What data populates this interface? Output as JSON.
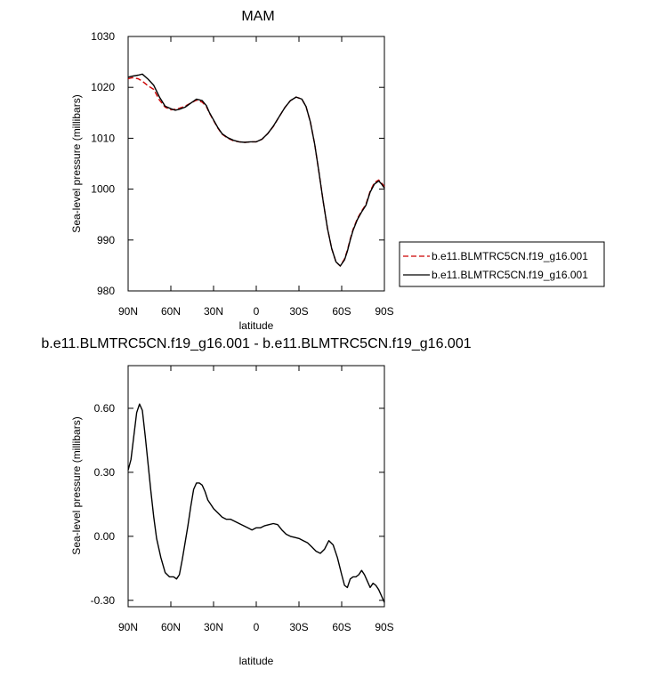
{
  "chart_data": [
    {
      "type": "line",
      "title": "MAM",
      "xlabel": "latitude",
      "ylabel": "Sea-level pressure (millibars)",
      "xlim": [
        90,
        -90
      ],
      "ylim": [
        980,
        1030
      ],
      "xticks": [
        90,
        60,
        30,
        0,
        -30,
        -60,
        -90
      ],
      "xtick_labels": [
        "90N",
        "60N",
        "30N",
        "0",
        "30S",
        "60S",
        "90S"
      ],
      "yticks": [
        980,
        990,
        1000,
        1010,
        1020,
        1030
      ],
      "ytick_labels": [
        "980",
        "990",
        "1000",
        "1010",
        "1020",
        "1030"
      ],
      "legend": "right",
      "series": [
        {
          "name": "b.e11.BLMTRC5CN.f19_g16.001",
          "color": "#cc0000",
          "style": "dashed",
          "x": [
            90,
            87,
            83,
            80,
            76,
            72,
            68,
            64,
            60,
            57,
            54,
            50,
            46,
            42,
            38,
            35,
            33,
            30,
            27,
            24,
            20,
            16,
            12,
            8,
            4,
            0,
            -4,
            -8,
            -12,
            -16,
            -20,
            -24,
            -28,
            -32,
            -35,
            -38,
            -41,
            -44,
            -47,
            -50,
            -53,
            -56,
            -59,
            -62,
            -64,
            -66,
            -68,
            -71,
            -74,
            -77,
            -80,
            -83,
            -86,
            -88,
            -90
          ],
          "y": [
            1021.7,
            1021.9,
            1021.7,
            1021.2,
            1020.3,
            1019.6,
            1017.5,
            1016.1,
            1015.6,
            1015.7,
            1015.9,
            1016.3,
            1016.9,
            1017.5,
            1017.1,
            1016.2,
            1015.0,
            1013.5,
            1012.0,
            1010.8,
            1010.0,
            1009.5,
            1009.3,
            1009.2,
            1009.3,
            1009.3,
            1009.8,
            1010.9,
            1012.3,
            1014.2,
            1016.0,
            1017.4,
            1018.1,
            1017.7,
            1016.2,
            1013.2,
            1008.9,
            1003.4,
            997.6,
            992.3,
            988.3,
            985.7,
            984.9,
            986.3,
            988.0,
            990.2,
            992.1,
            994.2,
            995.7,
            997.0,
            999.6,
            1001.3,
            1001.8,
            1001.2,
            1000.5
          ]
        },
        {
          "name": "b.e11.BLMTRC5CN.f19_g16.001",
          "color": "#000000",
          "style": "solid",
          "x": [
            90,
            87,
            83,
            80,
            76,
            72,
            68,
            64,
            60,
            57,
            54,
            50,
            46,
            42,
            38,
            35,
            33,
            30,
            27,
            24,
            20,
            16,
            12,
            8,
            4,
            0,
            -4,
            -8,
            -12,
            -16,
            -20,
            -24,
            -28,
            -32,
            -35,
            -38,
            -41,
            -44,
            -47,
            -50,
            -53,
            -56,
            -59,
            -62,
            -64,
            -66,
            -68,
            -71,
            -74,
            -77,
            -80,
            -83,
            -86,
            -88,
            -90
          ],
          "y": [
            1022.0,
            1022.2,
            1022.4,
            1022.6,
            1021.6,
            1020.4,
            1018.1,
            1016.3,
            1015.8,
            1015.5,
            1015.7,
            1016.1,
            1016.9,
            1017.7,
            1017.4,
            1016.4,
            1015.1,
            1013.6,
            1012.1,
            1010.9,
            1010.1,
            1009.6,
            1009.3,
            1009.2,
            1009.3,
            1009.3,
            1009.8,
            1010.9,
            1012.4,
            1014.2,
            1016.0,
            1017.4,
            1018.1,
            1017.7,
            1016.2,
            1013.2,
            1008.9,
            1003.4,
            997.6,
            992.3,
            988.3,
            985.7,
            984.9,
            986.1,
            987.8,
            990.0,
            991.9,
            994.0,
            995.5,
            996.8,
            999.4,
            1001.0,
            1001.6,
            1001.0,
            1000.2
          ]
        }
      ]
    },
    {
      "type": "line",
      "title": "b.e11.BLMTRC5CN.f19_g16.001 - b.e11.BLMTRC5CN.f19_g16.001",
      "xlabel": "latitude",
      "ylabel": "Sea-level pressure (millibars)",
      "xlim": [
        90,
        -90
      ],
      "ylim": [
        -0.33,
        0.8
      ],
      "xticks": [
        90,
        60,
        30,
        0,
        -30,
        -60,
        -90
      ],
      "xtick_labels": [
        "90N",
        "60N",
        "30N",
        "0",
        "30S",
        "60S",
        "90S"
      ],
      "yticks": [
        -0.3,
        0,
        0.3,
        0.6
      ],
      "ytick_labels": [
        "-0.30",
        "0.00",
        "0.30",
        "0.60"
      ],
      "series": [
        {
          "color": "#000000",
          "style": "solid",
          "x": [
            90,
            88,
            86,
            84,
            82,
            80,
            78,
            76,
            74,
            72,
            70,
            67,
            64,
            61,
            58,
            56,
            54,
            52,
            50,
            48,
            46,
            44,
            42,
            40,
            38,
            36,
            34,
            32,
            30,
            27,
            24,
            21,
            18,
            15,
            12,
            9,
            6,
            3,
            0,
            -3,
            -6,
            -9,
            -12,
            -15,
            -18,
            -21,
            -24,
            -27,
            -30,
            -33,
            -36,
            -39,
            -42,
            -45,
            -48,
            -51,
            -54,
            -57,
            -60,
            -62,
            -64,
            -66,
            -68,
            -70,
            -72,
            -74,
            -76,
            -78,
            -80,
            -82,
            -84,
            -86,
            -88,
            -90
          ],
          "y": [
            0.31,
            0.36,
            0.47,
            0.58,
            0.62,
            0.59,
            0.47,
            0.34,
            0.21,
            0.09,
            -0.01,
            -0.1,
            -0.17,
            -0.19,
            -0.19,
            -0.2,
            -0.18,
            -0.11,
            -0.03,
            0.05,
            0.14,
            0.22,
            0.25,
            0.25,
            0.24,
            0.21,
            0.17,
            0.15,
            0.13,
            0.11,
            0.09,
            0.08,
            0.08,
            0.07,
            0.06,
            0.05,
            0.04,
            0.03,
            0.04,
            0.04,
            0.05,
            0.055,
            0.06,
            0.055,
            0.03,
            0.01,
            0.0,
            -0.005,
            -0.01,
            -0.02,
            -0.03,
            -0.05,
            -0.07,
            -0.08,
            -0.06,
            -0.02,
            -0.04,
            -0.1,
            -0.18,
            -0.23,
            -0.24,
            -0.2,
            -0.19,
            -0.19,
            -0.18,
            -0.16,
            -0.18,
            -0.21,
            -0.24,
            -0.22,
            -0.23,
            -0.25,
            -0.28,
            -0.31
          ]
        }
      ]
    }
  ]
}
